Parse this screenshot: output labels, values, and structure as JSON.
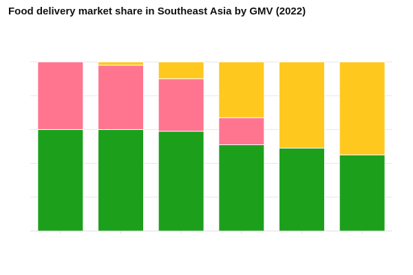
{
  "chart_data": {
    "type": "bar",
    "stacked": true,
    "title": "Food delivery market share in Southeast Asia by GMV (2022)",
    "xlabel": "",
    "ylabel": "",
    "categories": [
      "",
      "",
      "",
      "",
      "",
      ""
    ],
    "ylim": [
      0,
      100
    ],
    "grid": true,
    "legend": "none",
    "series": [
      {
        "color": "#1ca01c",
        "values": [
          60,
          60,
          59,
          51,
          49,
          45
        ]
      },
      {
        "color": "#ff7590",
        "values": [
          40,
          38,
          31,
          16,
          0,
          0
        ]
      },
      {
        "color": "#ffc81e",
        "values": [
          0,
          2,
          10,
          33,
          51,
          55
        ]
      }
    ]
  }
}
